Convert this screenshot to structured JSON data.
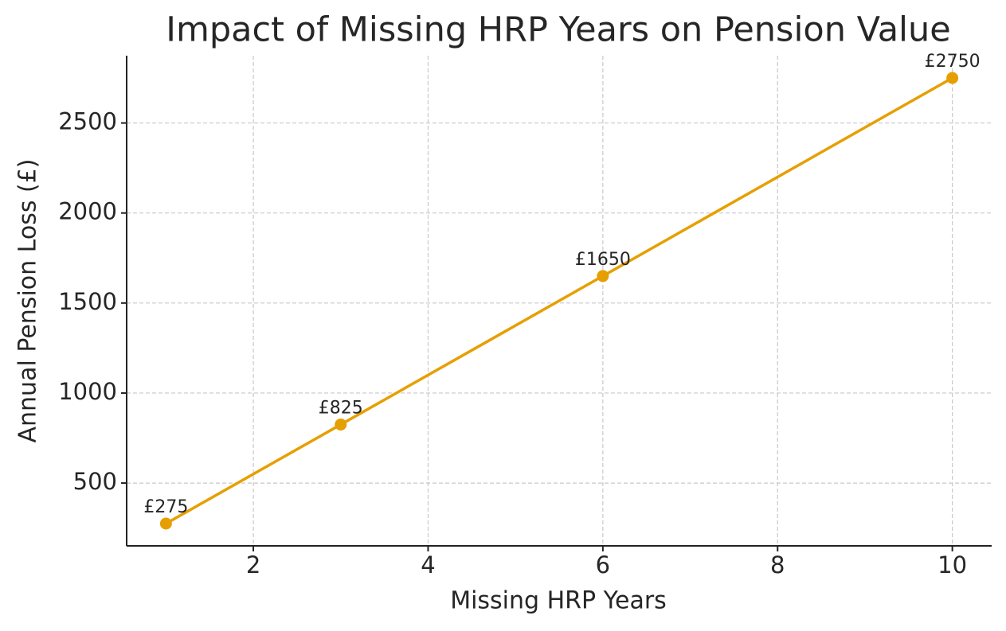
{
  "chart_data": {
    "type": "line",
    "title": "Impact of Missing HRP Years on Pension Value",
    "x_label": "Missing HRP Years",
    "y_label": "Annual Pension Loss (£)",
    "x": [
      1,
      3,
      6,
      10
    ],
    "series": [
      {
        "name": "Annual Pension Loss",
        "color": "#e69f00",
        "values": [
          275,
          825,
          1650,
          2750
        ],
        "value_labels": [
          "£275",
          "£825",
          "£1650",
          "£2750"
        ]
      }
    ],
    "xlim": [
      0.55,
      10.45
    ],
    "ylim": [
      151.25,
      2873.75
    ],
    "xticks": [
      2,
      4,
      6,
      8,
      10
    ],
    "yticks": [
      500,
      1000,
      1500,
      2000,
      2500
    ],
    "grid": true
  }
}
